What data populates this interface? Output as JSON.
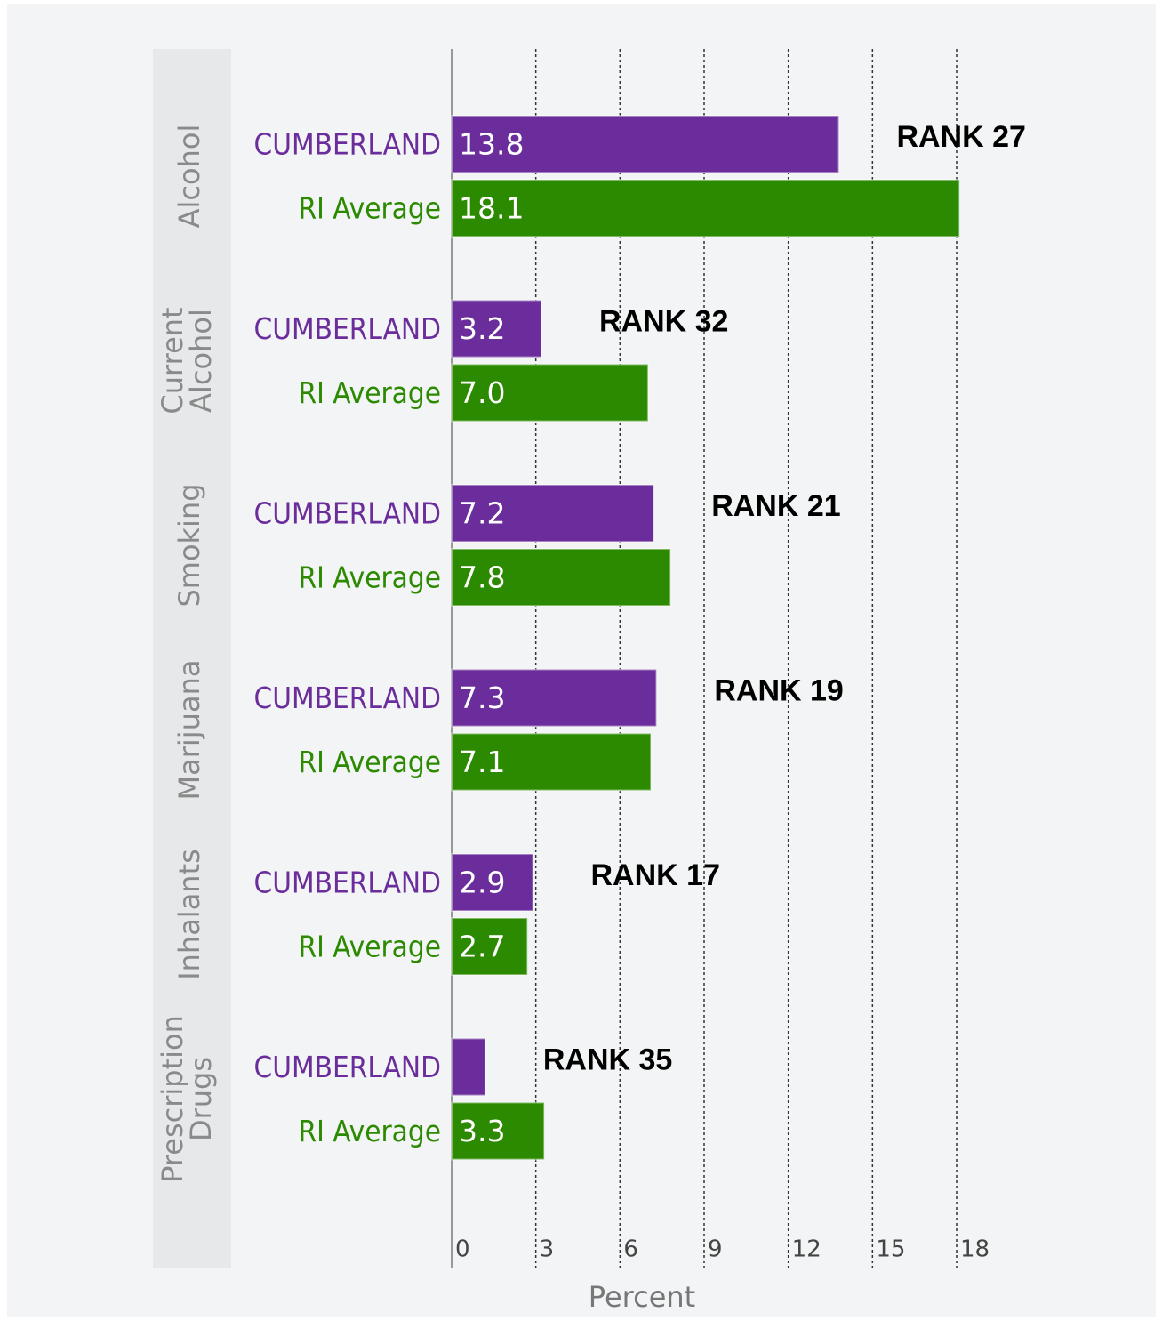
{
  "chart_data": {
    "type": "bar",
    "orientation": "horizontal",
    "categories": [
      "Alcohol",
      "Current Alcohol",
      "Smoking",
      "Marijuana",
      "Inhalants",
      "Prescription Drugs"
    ],
    "series": [
      {
        "name": "CUMBERLAND",
        "color": "#6a2d9b",
        "values": [
          13.8,
          3.2,
          7.2,
          7.3,
          2.9,
          1.2
        ],
        "value_labels": [
          "13.8",
          "3.2",
          "7.2",
          "7.3",
          "2.9",
          null
        ]
      },
      {
        "name": "RI Average",
        "color": "#2b8a00",
        "values": [
          18.1,
          7.0,
          7.8,
          7.1,
          2.7,
          3.3
        ],
        "value_labels": [
          "18.1",
          "7.0",
          "7.8",
          "7.1",
          "2.7",
          "3.3"
        ]
      }
    ],
    "annotations": [
      "RANK 27",
      "RANK 32",
      "RANK 21",
      "RANK 19",
      "RANK 17",
      "RANK 35"
    ],
    "xlabel": "Percent",
    "xlim": [
      0,
      18
    ],
    "xticks": [
      0,
      3,
      6,
      9,
      12,
      15,
      18
    ],
    "grid": true
  }
}
